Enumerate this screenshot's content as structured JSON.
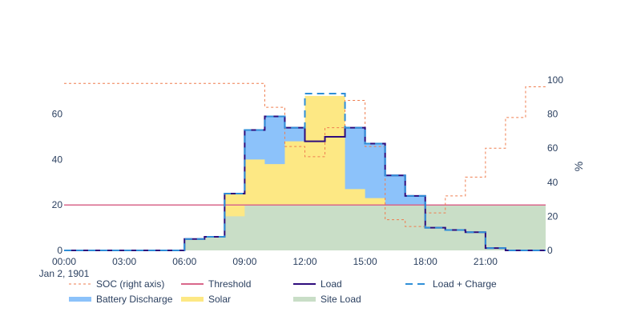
{
  "chart_data": {
    "type": "area",
    "x_ticks": [
      "00:00",
      "03:00",
      "06:00",
      "09:00",
      "12:00",
      "15:00",
      "18:00",
      "21:00"
    ],
    "x_tick_hours": [
      0,
      3,
      6,
      9,
      12,
      15,
      18,
      21
    ],
    "x_date_label": "Jan 2, 1901",
    "xlim_hours": [
      0,
      24
    ],
    "y_left": {
      "lim": [
        0,
        75
      ],
      "ticks": [
        0,
        20,
        40,
        60
      ]
    },
    "y_right": {
      "lim": [
        0,
        100
      ],
      "ticks": [
        0,
        20,
        40,
        60,
        80,
        100
      ],
      "title": "%"
    },
    "hours": [
      0,
      1,
      2,
      3,
      4,
      5,
      6,
      7,
      8,
      9,
      10,
      11,
      12,
      13,
      14,
      15,
      16,
      17,
      18,
      19,
      20,
      21,
      22,
      23
    ],
    "series": [
      {
        "name": "SOC (right axis)",
        "kind": "line",
        "axis": "right",
        "dash": "dot",
        "color": "#ef7d4f",
        "values": [
          98,
          98,
          98,
          98,
          98,
          98,
          98,
          98,
          98,
          98,
          84,
          61,
          55,
          72,
          88,
          61,
          18,
          14,
          22,
          32,
          43,
          60,
          78,
          96
        ]
      },
      {
        "name": "Threshold",
        "kind": "line",
        "axis": "left",
        "dash": "solid",
        "color": "#d9678b",
        "values": [
          20,
          20,
          20,
          20,
          20,
          20,
          20,
          20,
          20,
          20,
          20,
          20,
          20,
          20,
          20,
          20,
          20,
          20,
          20,
          20,
          20,
          20,
          20,
          20
        ]
      },
      {
        "name": "Load",
        "kind": "line",
        "axis": "left",
        "dash": "solid",
        "color": "#2e0c7c",
        "values": [
          0,
          0,
          0,
          0,
          0,
          0,
          5,
          6,
          25,
          53,
          59,
          54,
          48,
          50,
          54,
          47,
          33,
          24,
          10,
          9,
          8,
          1,
          0,
          0
        ]
      },
      {
        "name": "Load + Charge",
        "kind": "line",
        "axis": "left",
        "dash": "dash",
        "color": "#2f8fd8",
        "values": [
          0,
          0,
          0,
          0,
          0,
          0,
          5,
          6,
          25,
          53,
          59,
          54,
          69,
          69,
          54,
          47,
          33,
          24,
          10,
          9,
          8,
          1,
          0,
          0
        ]
      },
      {
        "name": "Battery Discharge",
        "kind": "fill",
        "color": "#8cc2fa",
        "values": [
          0,
          0,
          0,
          0,
          0,
          0,
          5,
          6,
          25,
          53,
          59,
          54,
          48,
          50,
          54,
          47,
          33,
          24,
          10,
          9,
          8,
          1,
          0,
          0
        ]
      },
      {
        "name": "Solar",
        "kind": "fill",
        "color": "#fde884",
        "values": [
          0,
          0,
          0,
          0,
          0,
          0,
          5,
          6,
          25,
          40,
          38,
          48,
          68,
          68,
          27,
          23,
          20,
          20,
          10,
          9,
          8,
          1,
          0,
          0
        ]
      },
      {
        "name": "Site Load",
        "kind": "fill",
        "color": "#c9dec7",
        "values": [
          0,
          0,
          0,
          0,
          0,
          0,
          5,
          6,
          15,
          20,
          20,
          20,
          20,
          20,
          20,
          20,
          20,
          20,
          20,
          20,
          20,
          20,
          20,
          20
        ]
      }
    ],
    "legend_order": [
      "SOC (right axis)",
      "Threshold",
      "Load",
      "Load + Charge",
      "Battery Discharge",
      "Solar",
      "Site Load"
    ],
    "legend_position": "bottom",
    "grid": false
  }
}
